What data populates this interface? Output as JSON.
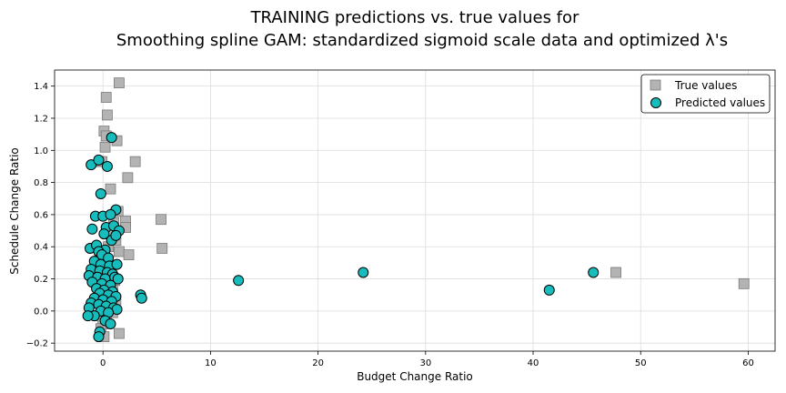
{
  "chart_data": {
    "type": "scatter",
    "title": [
      "TRAINING predictions vs. true values for",
      "Smoothing spline GAM: standardized sigmoid scale data and optimized λ's"
    ],
    "xlabel": "Budget Change Ratio",
    "ylabel": "Schedule Change Ratio",
    "xlim": [
      -4.5,
      62.5
    ],
    "ylim": [
      -0.25,
      1.5
    ],
    "xticks": [
      0,
      10,
      20,
      30,
      40,
      50,
      60
    ],
    "yticks": [
      -0.2,
      0.0,
      0.2,
      0.4,
      0.6,
      0.8,
      1.0,
      1.2,
      1.4
    ],
    "ytick_labels": [
      "−0.2",
      "0.0",
      "0.2",
      "0.4",
      "0.6",
      "0.8",
      "1.0",
      "1.2",
      "1.4"
    ],
    "grid": true,
    "legend_position": "top-right",
    "colors": {
      "true_fill": "#b3b3b3",
      "true_edge": "#7a7a7a",
      "pred_fill": "#17bdbd",
      "pred_edge": "#000000"
    },
    "series": [
      {
        "name": "True values",
        "marker": "square",
        "points": [
          [
            1.5,
            1.42
          ],
          [
            0.3,
            1.33
          ],
          [
            0.4,
            1.22
          ],
          [
            0.1,
            1.12
          ],
          [
            0.3,
            1.09
          ],
          [
            1.3,
            1.06
          ],
          [
            0.2,
            1.02
          ],
          [
            -0.3,
            0.93
          ],
          [
            -0.1,
            0.93
          ],
          [
            3.0,
            0.93
          ],
          [
            2.3,
            0.83
          ],
          [
            0.7,
            0.76
          ],
          [
            1.4,
            0.62
          ],
          [
            2.1,
            0.56
          ],
          [
            5.4,
            0.57
          ],
          [
            1.0,
            0.55
          ],
          [
            2.1,
            0.52
          ],
          [
            0.5,
            0.48
          ],
          [
            1.2,
            0.44
          ],
          [
            0.5,
            0.4
          ],
          [
            5.5,
            0.39
          ],
          [
            1.5,
            0.37
          ],
          [
            2.4,
            0.35
          ],
          [
            -0.3,
            0.33
          ],
          [
            0.3,
            0.31
          ],
          [
            0.8,
            0.28
          ],
          [
            0.0,
            0.25
          ],
          [
            -0.5,
            0.22
          ],
          [
            0.6,
            0.21
          ],
          [
            1.1,
            0.19
          ],
          [
            -0.4,
            0.17
          ],
          [
            0.2,
            0.15
          ],
          [
            0.9,
            0.13
          ],
          [
            -0.2,
            0.11
          ],
          [
            0.4,
            0.09
          ],
          [
            1.2,
            0.07
          ],
          [
            -0.3,
            0.05
          ],
          [
            0.6,
            0.03
          ],
          [
            0.1,
            0.0
          ],
          [
            0.9,
            -0.01
          ],
          [
            -0.5,
            -0.03
          ],
          [
            0.3,
            -0.05
          ],
          [
            0.0,
            -0.08
          ],
          [
            -0.2,
            -0.11
          ],
          [
            1.5,
            -0.14
          ],
          [
            0.1,
            -0.16
          ],
          [
            47.7,
            0.24
          ],
          [
            59.6,
            0.17
          ]
        ]
      },
      {
        "name": "Predicted values",
        "marker": "circle",
        "points": [
          [
            0.8,
            1.08
          ],
          [
            -1.1,
            0.91
          ],
          [
            -0.4,
            0.94
          ],
          [
            0.4,
            0.9
          ],
          [
            -0.2,
            0.73
          ],
          [
            1.2,
            0.63
          ],
          [
            -0.7,
            0.59
          ],
          [
            0.0,
            0.59
          ],
          [
            0.7,
            0.6
          ],
          [
            0.3,
            0.52
          ],
          [
            1.0,
            0.53
          ],
          [
            -1.0,
            0.51
          ],
          [
            0.1,
            0.48
          ],
          [
            1.5,
            0.5
          ],
          [
            0.8,
            0.44
          ],
          [
            1.2,
            0.47
          ],
          [
            -1.2,
            0.39
          ],
          [
            -0.6,
            0.41
          ],
          [
            0.2,
            0.38
          ],
          [
            -0.4,
            0.37
          ],
          [
            -0.1,
            0.35
          ],
          [
            0.5,
            0.33
          ],
          [
            -0.8,
            0.31
          ],
          [
            -0.2,
            0.29
          ],
          [
            0.6,
            0.28
          ],
          [
            1.3,
            0.29
          ],
          [
            -1.1,
            0.26
          ],
          [
            -0.3,
            0.25
          ],
          [
            0.4,
            0.24
          ],
          [
            0.9,
            0.23
          ],
          [
            -1.3,
            0.22
          ],
          [
            -0.5,
            0.21
          ],
          [
            0.2,
            0.2
          ],
          [
            1.1,
            0.21
          ],
          [
            1.4,
            0.2
          ],
          [
            -1.0,
            0.18
          ],
          [
            -0.1,
            0.17
          ],
          [
            0.7,
            0.16
          ],
          [
            -0.6,
            0.14
          ],
          [
            0.1,
            0.13
          ],
          [
            0.9,
            0.12
          ],
          [
            -0.3,
            0.11
          ],
          [
            0.5,
            0.1
          ],
          [
            1.2,
            0.09
          ],
          [
            -0.8,
            0.08
          ],
          [
            0.0,
            0.07
          ],
          [
            0.8,
            0.06
          ],
          [
            -1.1,
            0.05
          ],
          [
            -0.4,
            0.04
          ],
          [
            0.3,
            0.03
          ],
          [
            1.0,
            0.02
          ],
          [
            1.3,
            0.01
          ],
          [
            -1.3,
            0.02
          ],
          [
            -0.2,
            0.0
          ],
          [
            0.5,
            -0.01
          ],
          [
            -0.8,
            -0.03
          ],
          [
            0.2,
            -0.06
          ],
          [
            0.7,
            -0.08
          ],
          [
            -0.3,
            -0.13
          ],
          [
            -0.4,
            -0.16
          ],
          [
            -1.4,
            -0.03
          ],
          [
            3.5,
            0.1
          ],
          [
            3.6,
            0.08
          ],
          [
            12.6,
            0.19
          ],
          [
            24.2,
            0.24
          ],
          [
            41.5,
            0.13
          ],
          [
            45.6,
            0.24
          ]
        ]
      }
    ]
  }
}
